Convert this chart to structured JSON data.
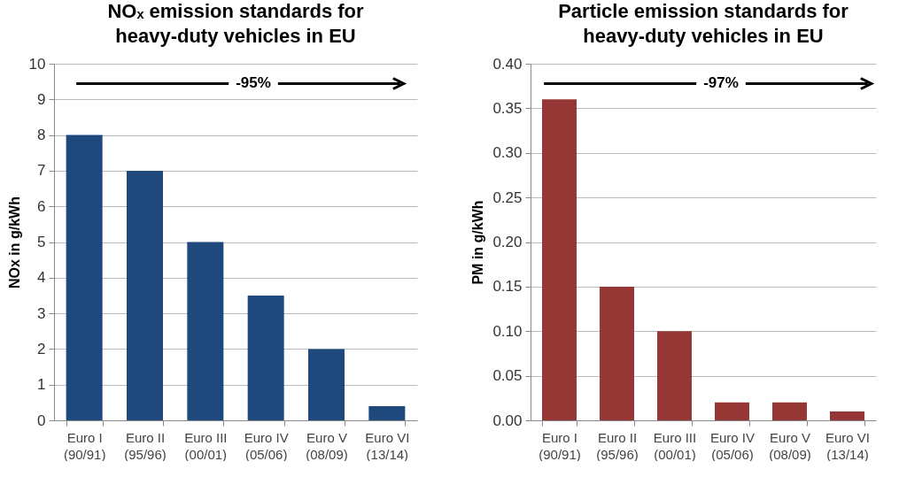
{
  "chart_data": [
    {
      "type": "bar",
      "title": "NOₓ emission standards for\nheavy-duty vehicles in EU",
      "ylabel": "NOx in g/kWh",
      "categories": [
        "Euro I\n(90/91)",
        "Euro II\n(95/96)",
        "Euro III\n(00/01)",
        "Euro IV\n(05/06)",
        "Euro V\n(08/09)",
        "Euro VI\n(13/14)"
      ],
      "values": [
        8,
        7,
        5,
        3.5,
        2,
        0.4
      ],
      "color": "#1f497d",
      "ylim": [
        0,
        10
      ],
      "yticks": [
        0,
        1,
        2,
        3,
        4,
        5,
        6,
        7,
        8,
        9,
        10
      ],
      "grid": "y",
      "annotations": [
        "-95%"
      ]
    },
    {
      "type": "bar",
      "title": "Particle emission standards for\nheavy-duty vehicles in EU",
      "ylabel": "PM in g/kWh",
      "categories": [
        "Euro I\n(90/91)",
        "Euro II\n(95/96)",
        "Euro III\n(00/01)",
        "Euro IV\n(05/06)",
        "Euro V\n(08/09)",
        "Euro VI\n(13/14)"
      ],
      "values": [
        0.36,
        0.15,
        0.1,
        0.02,
        0.02,
        0.01
      ],
      "color": "#953735",
      "ylim": [
        0,
        0.4
      ],
      "yticks": [
        {
          "value": 0,
          "label": "0.00"
        },
        {
          "value": 0.05,
          "label": "0.05"
        },
        {
          "value": 0.1,
          "label": "0.10"
        },
        {
          "value": 0.15,
          "label": "0.15"
        },
        {
          "value": 0.2,
          "label": "0.20"
        },
        {
          "value": 0.25,
          "label": "0.25"
        },
        {
          "value": 0.3,
          "label": "0.30"
        },
        {
          "value": 0.35,
          "label": "0.35"
        },
        {
          "value": 0.4,
          "label": "0.40"
        }
      ],
      "grid": "y",
      "annotations": [
        "-97%"
      ]
    }
  ]
}
